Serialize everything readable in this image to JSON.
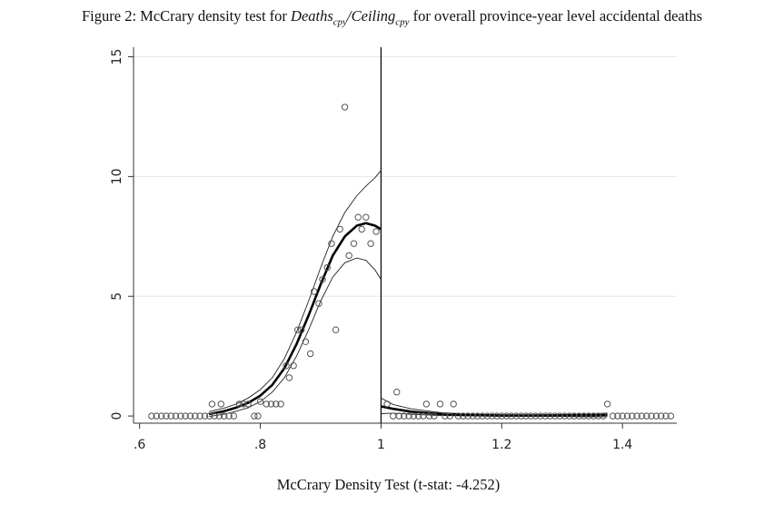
{
  "title": {
    "prefix": "Figure 2: McCrary density test for ",
    "num_var": "Deaths",
    "num_sub": "cpy",
    "slash": "/",
    "den_var": "Ceiling",
    "den_sub": "cpy",
    "suffix": " for overall province-year level accidental deaths"
  },
  "chart_data": {
    "type": "scatter",
    "xlabel": "McCrary Density Test (t-stat: -4.252)",
    "ylabel": "",
    "xlim": [
      0.59,
      1.49
    ],
    "ylim": [
      -0.3,
      15.4
    ],
    "x_ticks": [
      0.6,
      0.8,
      1.0,
      1.2,
      1.4
    ],
    "x_tick_labels": [
      ".6",
      ".8",
      "1",
      "1.2",
      "1.4"
    ],
    "y_ticks": [
      0,
      5,
      10,
      15
    ],
    "y_tick_labels": [
      "0",
      "5",
      "10",
      "15"
    ],
    "grid": "horizontal",
    "cutoff": 1.0,
    "bin_points": [
      [
        0.62,
        0
      ],
      [
        0.628,
        0
      ],
      [
        0.636,
        0
      ],
      [
        0.644,
        0
      ],
      [
        0.652,
        0
      ],
      [
        0.66,
        0
      ],
      [
        0.668,
        0
      ],
      [
        0.676,
        0
      ],
      [
        0.684,
        0
      ],
      [
        0.692,
        0
      ],
      [
        0.7,
        0
      ],
      [
        0.708,
        0
      ],
      [
        0.716,
        0
      ],
      [
        0.724,
        0
      ],
      [
        0.732,
        0
      ],
      [
        0.74,
        0
      ],
      [
        0.748,
        0
      ],
      [
        0.756,
        0
      ],
      [
        0.79,
        0
      ],
      [
        0.796,
        0
      ],
      [
        0.72,
        0.5
      ],
      [
        0.735,
        0.5
      ],
      [
        0.765,
        0.5
      ],
      [
        0.772,
        0.5
      ],
      [
        0.78,
        0.5
      ],
      [
        0.81,
        0.5
      ],
      [
        0.818,
        0.5
      ],
      [
        0.826,
        0.5
      ],
      [
        0.834,
        0.5
      ],
      [
        0.8,
        0.6
      ],
      [
        0.843,
        2.1
      ],
      [
        0.848,
        1.6
      ],
      [
        0.855,
        2.1
      ],
      [
        0.862,
        3.6
      ],
      [
        0.868,
        3.6
      ],
      [
        0.875,
        3.1
      ],
      [
        0.883,
        2.6
      ],
      [
        0.889,
        5.2
      ],
      [
        0.897,
        4.7
      ],
      [
        0.903,
        5.7
      ],
      [
        0.911,
        6.2
      ],
      [
        0.918,
        7.2
      ],
      [
        0.925,
        3.6
      ],
      [
        0.932,
        7.8
      ],
      [
        0.94,
        12.9
      ],
      [
        0.947,
        6.7
      ],
      [
        0.955,
        7.2
      ],
      [
        0.962,
        8.3
      ],
      [
        0.975,
        8.3
      ],
      [
        0.983,
        7.2
      ],
      [
        0.992,
        7.7
      ],
      [
        0.968,
        7.8
      ],
      [
        1.01,
        0.5
      ],
      [
        1.02,
        0
      ],
      [
        1.026,
        1.0
      ],
      [
        1.075,
        0.5
      ],
      [
        1.098,
        0.5
      ],
      [
        1.12,
        0.5
      ],
      [
        1.03,
        0
      ],
      [
        1.038,
        0
      ],
      [
        1.046,
        0
      ],
      [
        1.054,
        0
      ],
      [
        1.062,
        0
      ],
      [
        1.07,
        0
      ],
      [
        1.08,
        0
      ],
      [
        1.088,
        0
      ],
      [
        1.106,
        0
      ],
      [
        1.114,
        0
      ],
      [
        1.128,
        0
      ],
      [
        1.136,
        0
      ],
      [
        1.144,
        0
      ],
      [
        1.152,
        0
      ],
      [
        1.16,
        0
      ],
      [
        1.168,
        0
      ],
      [
        1.176,
        0
      ],
      [
        1.184,
        0
      ],
      [
        1.192,
        0
      ],
      [
        1.2,
        0
      ],
      [
        1.208,
        0
      ],
      [
        1.216,
        0
      ],
      [
        1.224,
        0
      ],
      [
        1.232,
        0
      ],
      [
        1.24,
        0
      ],
      [
        1.248,
        0
      ],
      [
        1.256,
        0
      ],
      [
        1.264,
        0
      ],
      [
        1.272,
        0
      ],
      [
        1.28,
        0
      ],
      [
        1.288,
        0
      ],
      [
        1.296,
        0
      ],
      [
        1.304,
        0
      ],
      [
        1.312,
        0
      ],
      [
        1.32,
        0
      ],
      [
        1.328,
        0
      ],
      [
        1.336,
        0
      ],
      [
        1.344,
        0
      ],
      [
        1.352,
        0
      ],
      [
        1.36,
        0
      ],
      [
        1.375,
        0.5
      ],
      [
        1.368,
        0
      ],
      [
        1.384,
        0
      ],
      [
        1.392,
        0
      ],
      [
        1.4,
        0
      ],
      [
        1.408,
        0
      ],
      [
        1.416,
        0
      ],
      [
        1.424,
        0
      ],
      [
        1.432,
        0
      ],
      [
        1.44,
        0
      ],
      [
        1.448,
        0
      ],
      [
        1.456,
        0
      ],
      [
        1.464,
        0
      ],
      [
        1.472,
        0
      ],
      [
        1.48,
        0
      ]
    ],
    "fit_left": {
      "x": [
        0.715,
        0.74,
        0.76,
        0.78,
        0.8,
        0.82,
        0.84,
        0.86,
        0.88,
        0.9,
        0.92,
        0.94,
        0.96,
        0.975,
        0.99,
        1.0
      ],
      "y": [
        0.08,
        0.2,
        0.35,
        0.55,
        0.85,
        1.3,
        2.0,
        3.0,
        4.2,
        5.5,
        6.7,
        7.5,
        7.95,
        8.05,
        7.95,
        7.8
      ],
      "upper": [
        0.18,
        0.33,
        0.5,
        0.75,
        1.1,
        1.6,
        2.4,
        3.5,
        4.8,
        6.2,
        7.5,
        8.5,
        9.2,
        9.6,
        9.95,
        10.25
      ],
      "lower": [
        -0.02,
        0.07,
        0.2,
        0.35,
        0.6,
        1.0,
        1.6,
        2.5,
        3.6,
        4.8,
        5.8,
        6.4,
        6.6,
        6.5,
        6.1,
        5.7
      ]
    },
    "fit_right": {
      "x": [
        1.0,
        1.02,
        1.05,
        1.08,
        1.1,
        1.15,
        1.2,
        1.25,
        1.3,
        1.35,
        1.375
      ],
      "y": [
        0.4,
        0.3,
        0.18,
        0.12,
        0.08,
        0.04,
        0.02,
        0.02,
        0.02,
        0.03,
        0.05
      ],
      "upper": [
        0.75,
        0.48,
        0.3,
        0.2,
        0.14,
        0.08,
        0.05,
        0.05,
        0.06,
        0.09,
        0.12
      ],
      "lower": [
        0.1,
        0.12,
        0.07,
        0.04,
        0.02,
        0.0,
        -0.01,
        -0.01,
        -0.02,
        -0.03,
        -0.03
      ]
    }
  }
}
